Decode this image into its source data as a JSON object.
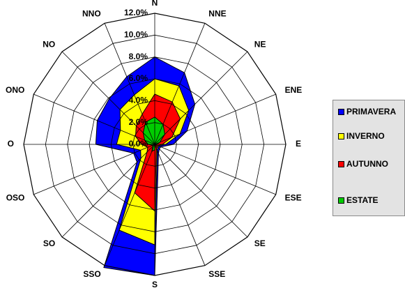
{
  "chart_data": {
    "type": "radar",
    "directions": [
      "N",
      "NNE",
      "NE",
      "ENE",
      "E",
      "ESE",
      "SE",
      "SSE",
      "S",
      "SSO",
      "SO",
      "OSO",
      "O",
      "ONO",
      "NO",
      "NNO"
    ],
    "tick_labels": [
      "0.0%",
      "2.0%",
      "4.0%",
      "6.0%",
      "8.0%",
      "10.0%",
      "12.0%"
    ],
    "rlim": [
      0,
      12
    ],
    "r_step": 2,
    "grid": true,
    "legend_position": "right",
    "series": [
      {
        "name": "PRIMAVERA",
        "color": "#0000ff",
        "values": [
          8.0,
          7.1,
          5.2,
          3.2,
          1.7,
          0.6,
          0.6,
          0.9,
          12.0,
          12.2,
          2.3,
          2.1,
          5.4,
          5.7,
          5.9,
          6.7
        ]
      },
      {
        "name": "INVERNO",
        "color": "#ffff00",
        "values": [
          6.0,
          5.8,
          4.4,
          2.5,
          1.0,
          0.4,
          0.4,
          0.6,
          9.2,
          8.5,
          1.8,
          1.4,
          3.5,
          3.4,
          4.5,
          4.9
        ]
      },
      {
        "name": "AUTUNNO",
        "color": "#ff0000",
        "values": [
          4.6,
          4.2,
          3.3,
          1.7,
          0.7,
          0.3,
          0.3,
          0.4,
          6.1,
          4.8,
          1.0,
          0.7,
          1.2,
          1.9,
          2.4,
          3.0
        ]
      },
      {
        "name": "ESTATE",
        "color": "#00cc00",
        "values": [
          2.5,
          2.0,
          1.3,
          0.5,
          0.2,
          0.1,
          0.1,
          0.1,
          0.5,
          0.7,
          0.3,
          0.2,
          0.6,
          1.0,
          1.5,
          2.2
        ]
      }
    ]
  }
}
